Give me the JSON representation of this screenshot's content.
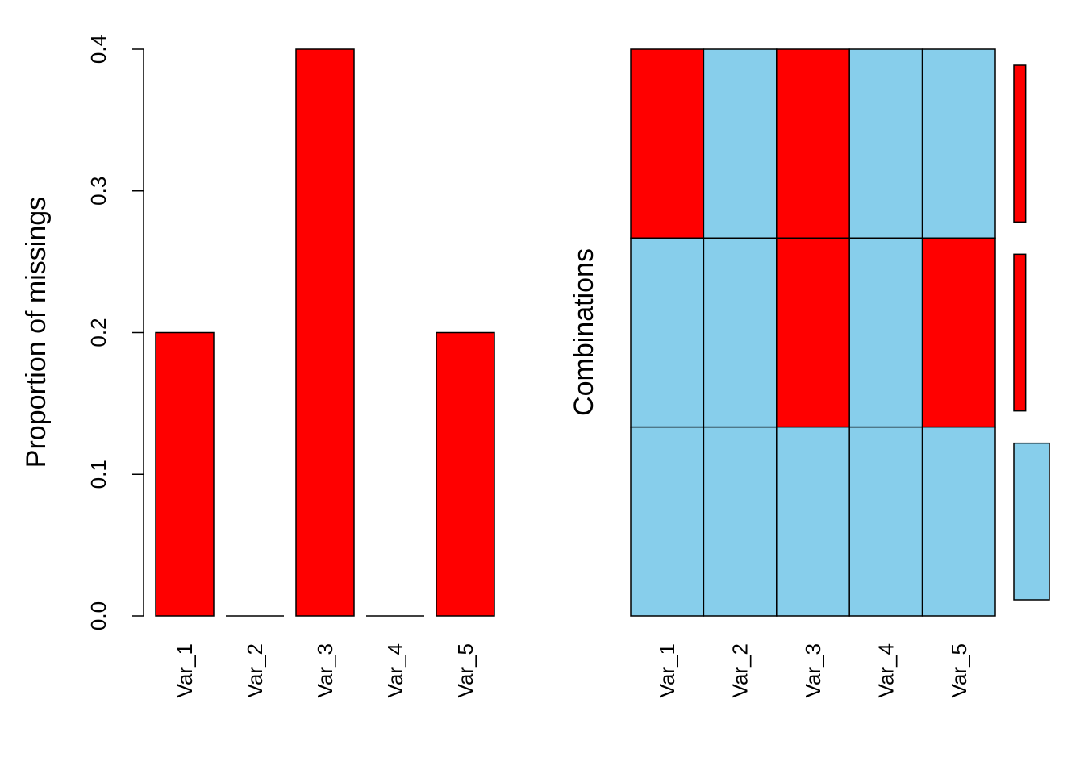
{
  "colors": {
    "missing": "#ff0000",
    "observed": "#87ceeb",
    "outline": "#000000",
    "background": "#ffffff"
  },
  "chart_data": [
    {
      "type": "bar",
      "categories": [
        "Var_1",
        "Var_2",
        "Var_3",
        "Var_4",
        "Var_5"
      ],
      "values": [
        0.2,
        0.0,
        0.4,
        0.0,
        0.2
      ],
      "ylabel": "Proportion of missings",
      "xlabel": "",
      "ylim": [
        0,
        0.4
      ],
      "yticks": [
        "0.0",
        "0.1",
        "0.2",
        "0.3",
        "0.4"
      ],
      "grid": false
    },
    {
      "type": "heatmap",
      "columns": [
        "Var_1",
        "Var_2",
        "Var_3",
        "Var_4",
        "Var_5"
      ],
      "ylabel": "Combinations",
      "rows": [
        {
          "pattern": [
            1,
            0,
            1,
            0,
            0
          ],
          "proportion": 0.2
        },
        {
          "pattern": [
            0,
            0,
            1,
            0,
            1
          ],
          "proportion": 0.2
        },
        {
          "pattern": [
            0,
            0,
            0,
            0,
            0
          ],
          "proportion": 0.6
        }
      ],
      "legend": "1 = missing (red), 0 = observed (sky blue); right-side bars show the proportion of each combination"
    }
  ]
}
